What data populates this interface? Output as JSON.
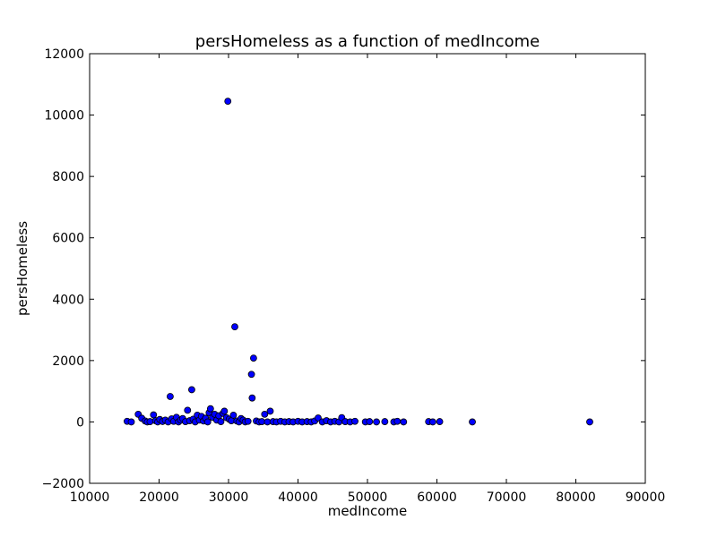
{
  "chart_data": {
    "type": "scatter",
    "title": "persHomeless as a function of medIncome",
    "xlabel": "medIncome",
    "ylabel": "persHomeless",
    "xlim": [
      10000,
      90000
    ],
    "ylim": [
      -2000,
      12000
    ],
    "xticks": [
      10000,
      20000,
      30000,
      40000,
      50000,
      60000,
      70000,
      80000,
      90000
    ],
    "yticks": [
      -2000,
      0,
      2000,
      4000,
      6000,
      8000,
      10000,
      12000
    ],
    "xtick_labels": [
      "10000",
      "20000",
      "30000",
      "40000",
      "50000",
      "60000",
      "70000",
      "80000",
      "90000"
    ],
    "ytick_labels": [
      "−2000",
      "0",
      "2000",
      "4000",
      "6000",
      "8000",
      "10000",
      "12000"
    ],
    "grid": false,
    "marker_color": "#0000ff",
    "marker_edge": "#000000",
    "points": [
      {
        "x": 15400,
        "y": 20
      },
      {
        "x": 16000,
        "y": 0
      },
      {
        "x": 17000,
        "y": 250
      },
      {
        "x": 17500,
        "y": 120
      },
      {
        "x": 18000,
        "y": 30
      },
      {
        "x": 18300,
        "y": 0
      },
      {
        "x": 18700,
        "y": 10
      },
      {
        "x": 19200,
        "y": 230
      },
      {
        "x": 19500,
        "y": 40
      },
      {
        "x": 19800,
        "y": 0
      },
      {
        "x": 20100,
        "y": 80
      },
      {
        "x": 20500,
        "y": 15
      },
      {
        "x": 20900,
        "y": 60
      },
      {
        "x": 21300,
        "y": 0
      },
      {
        "x": 21600,
        "y": 830
      },
      {
        "x": 21800,
        "y": 100
      },
      {
        "x": 22100,
        "y": 20
      },
      {
        "x": 22500,
        "y": 150
      },
      {
        "x": 22800,
        "y": 0
      },
      {
        "x": 23100,
        "y": 60
      },
      {
        "x": 23400,
        "y": 110
      },
      {
        "x": 23800,
        "y": 10
      },
      {
        "x": 24100,
        "y": 380
      },
      {
        "x": 24400,
        "y": 40
      },
      {
        "x": 24700,
        "y": 1050
      },
      {
        "x": 24900,
        "y": 90
      },
      {
        "x": 25200,
        "y": 0
      },
      {
        "x": 25500,
        "y": 220
      },
      {
        "x": 25800,
        "y": 60
      },
      {
        "x": 26100,
        "y": 180
      },
      {
        "x": 26400,
        "y": 30
      },
      {
        "x": 26700,
        "y": 120
      },
      {
        "x": 27000,
        "y": 0
      },
      {
        "x": 27200,
        "y": 300
      },
      {
        "x": 27400,
        "y": 430
      },
      {
        "x": 27700,
        "y": 150
      },
      {
        "x": 28000,
        "y": 250
      },
      {
        "x": 28300,
        "y": 60
      },
      {
        "x": 28600,
        "y": 200
      },
      {
        "x": 28900,
        "y": 10
      },
      {
        "x": 29200,
        "y": 280
      },
      {
        "x": 29400,
        "y": 350
      },
      {
        "x": 29700,
        "y": 140
      },
      {
        "x": 29900,
        "y": 10450
      },
      {
        "x": 30100,
        "y": 90
      },
      {
        "x": 30400,
        "y": 40
      },
      {
        "x": 30700,
        "y": 220
      },
      {
        "x": 30900,
        "y": 3100
      },
      {
        "x": 31200,
        "y": 30
      },
      {
        "x": 31500,
        "y": 0
      },
      {
        "x": 31800,
        "y": 110
      },
      {
        "x": 32100,
        "y": 60
      },
      {
        "x": 32400,
        "y": 0
      },
      {
        "x": 32800,
        "y": 20
      },
      {
        "x": 33300,
        "y": 1550
      },
      {
        "x": 33400,
        "y": 780
      },
      {
        "x": 33600,
        "y": 2080
      },
      {
        "x": 34000,
        "y": 30
      },
      {
        "x": 34400,
        "y": 0
      },
      {
        "x": 34800,
        "y": 10
      },
      {
        "x": 35200,
        "y": 250
      },
      {
        "x": 35600,
        "y": 0
      },
      {
        "x": 36000,
        "y": 350
      },
      {
        "x": 36400,
        "y": 10
      },
      {
        "x": 36900,
        "y": 0
      },
      {
        "x": 37500,
        "y": 20
      },
      {
        "x": 38100,
        "y": 0
      },
      {
        "x": 38700,
        "y": 10
      },
      {
        "x": 39300,
        "y": 0
      },
      {
        "x": 40000,
        "y": 20
      },
      {
        "x": 40600,
        "y": 0
      },
      {
        "x": 41300,
        "y": 10
      },
      {
        "x": 41900,
        "y": 0
      },
      {
        "x": 42400,
        "y": 30
      },
      {
        "x": 42900,
        "y": 130
      },
      {
        "x": 43500,
        "y": 0
      },
      {
        "x": 44100,
        "y": 40
      },
      {
        "x": 44700,
        "y": 0
      },
      {
        "x": 45300,
        "y": 20
      },
      {
        "x": 45900,
        "y": 0
      },
      {
        "x": 46300,
        "y": 140
      },
      {
        "x": 46800,
        "y": 10
      },
      {
        "x": 47500,
        "y": 0
      },
      {
        "x": 48200,
        "y": 20
      },
      {
        "x": 49700,
        "y": 0
      },
      {
        "x": 50300,
        "y": 10
      },
      {
        "x": 51300,
        "y": 0
      },
      {
        "x": 52500,
        "y": 10
      },
      {
        "x": 53800,
        "y": 0
      },
      {
        "x": 54300,
        "y": 20
      },
      {
        "x": 55200,
        "y": 0
      },
      {
        "x": 58800,
        "y": 10
      },
      {
        "x": 59400,
        "y": 0
      },
      {
        "x": 60400,
        "y": 10
      },
      {
        "x": 65100,
        "y": 0
      },
      {
        "x": 82000,
        "y": 0
      }
    ]
  }
}
